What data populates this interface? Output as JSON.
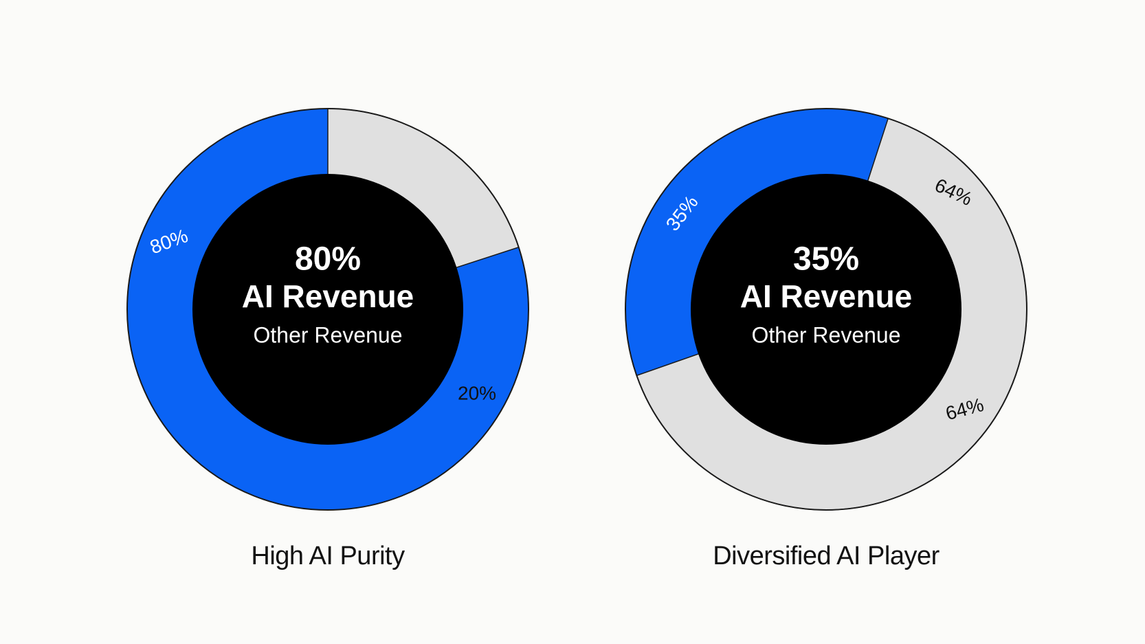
{
  "chart_data": [
    {
      "type": "pie",
      "title": "High AI Purity",
      "center_value": "80%",
      "center_label": "AI Revenue",
      "center_sublabel": "Other Revenue",
      "slices": [
        {
          "label": "80%",
          "value": 80,
          "color": "#0a63f5"
        },
        {
          "label": "20%",
          "value": 20,
          "color": "#e0e0e0"
        }
      ]
    },
    {
      "type": "pie",
      "title": "Diversified AI Player",
      "center_value": "35%",
      "center_label": "AI Revenue",
      "center_sublabel": "Other Revenue",
      "slices": [
        {
          "label": "35%",
          "value": 35,
          "color": "#0a63f5"
        },
        {
          "label": "64%",
          "value": 64,
          "color": "#e0e0e0"
        }
      ],
      "extra_labels": [
        "64%"
      ]
    }
  ],
  "colors": {
    "ai": "#0a63f5",
    "other": "#e0e0e0",
    "center": "#000000",
    "outline": "#1a1a1a"
  }
}
